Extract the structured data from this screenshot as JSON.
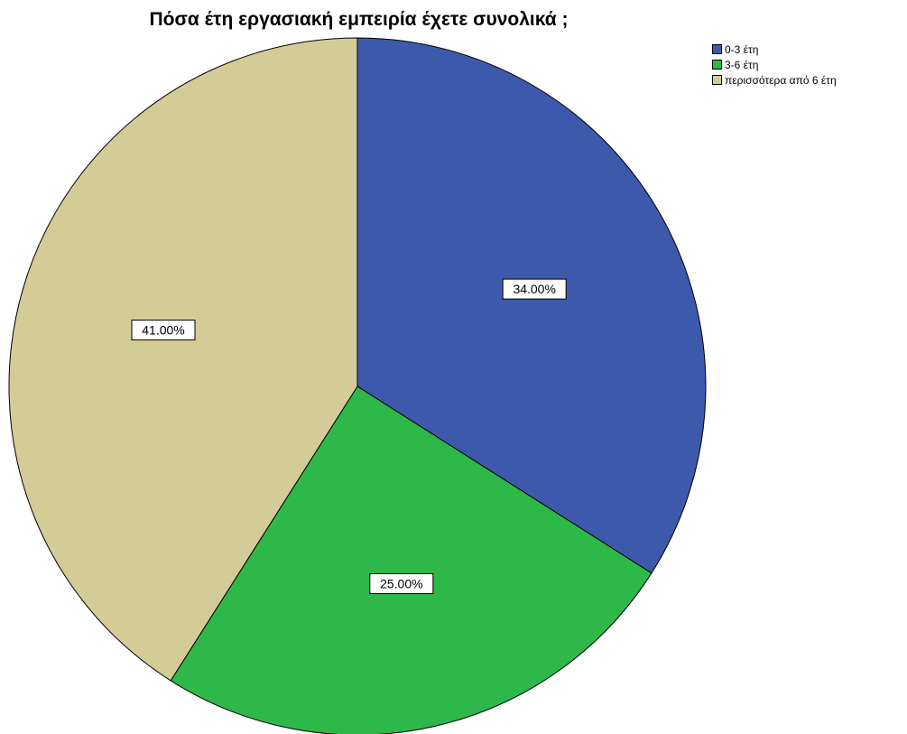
{
  "chart_data": {
    "type": "pie",
    "title": "Πόσα έτη εργασιακή εμπειρία έχετε  συνολικά ;",
    "slices": [
      {
        "name": "0-3 έτη",
        "value": 34.0,
        "label": "34.00%",
        "color": "#3d59ab"
      },
      {
        "name": "3-6 έτη",
        "value": 25.0,
        "label": "25.00%",
        "color": "#2fb84a"
      },
      {
        "name": "περισσότερα από 6 έτη",
        "value": 41.0,
        "label": "41.00%",
        "color": "#d4cc97"
      }
    ],
    "start_angle_deg": 0,
    "direction": "clockwise",
    "legend_position": "top-right"
  }
}
